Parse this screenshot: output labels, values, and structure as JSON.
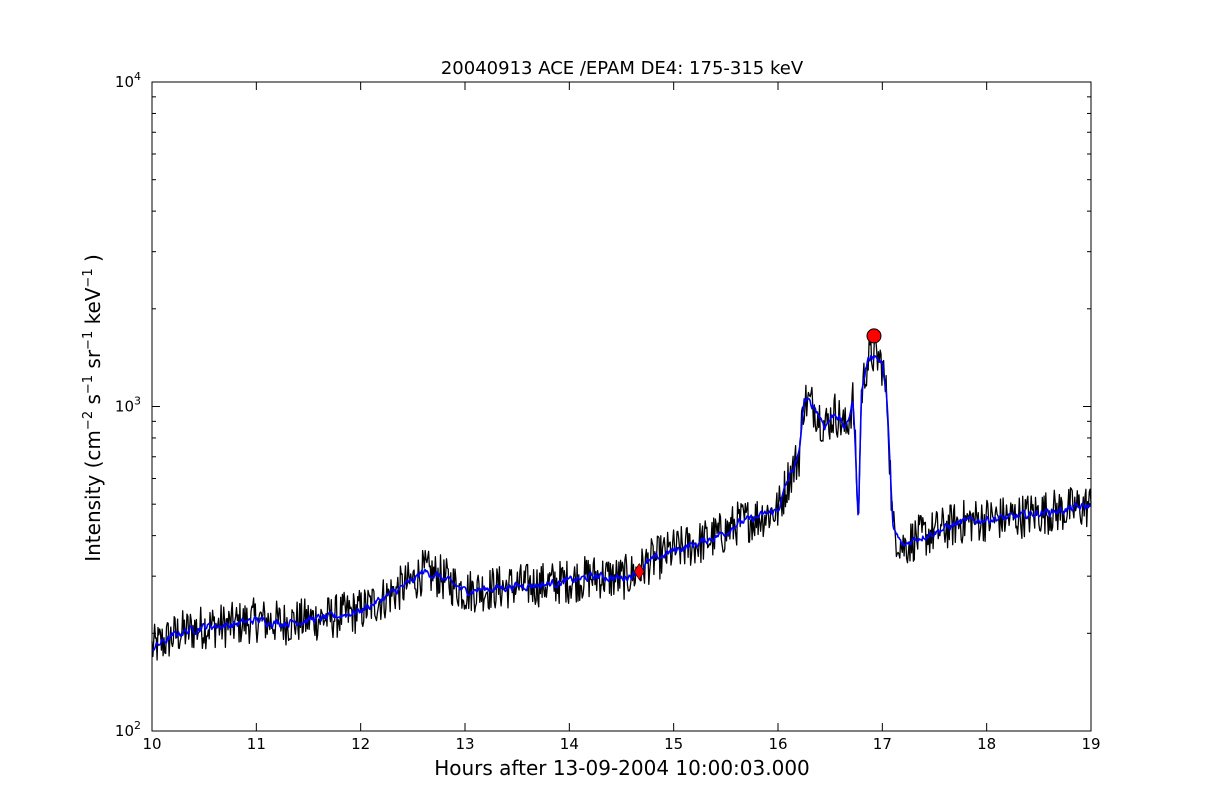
{
  "chart_data": {
    "type": "line",
    "title": "20040913 ACE /EPAM DE4: 175-315 keV",
    "xlabel": "Hours after 13-09-2004 10:00:03.000",
    "ylabel": {
      "prefix": "Intensity (cm",
      "exp1": "−2",
      "s": " s",
      "exp2": "−1",
      "sr": " sr",
      "exp3": "−1",
      "kev": " keV",
      "exp4": "−1",
      "suffix": " )"
    },
    "xlim": [
      10,
      19
    ],
    "ylim": [
      100,
      10000
    ],
    "yscale": "log",
    "x_ticks": [
      "10",
      "11",
      "12",
      "13",
      "14",
      "15",
      "16",
      "17",
      "18",
      "19"
    ],
    "y_ticks": [
      {
        "base": "10",
        "exp": "2"
      },
      {
        "base": "10",
        "exp": "3"
      },
      {
        "base": "10",
        "exp": "4"
      }
    ],
    "grid": false,
    "series": [
      {
        "style": "raw",
        "color": "#000000",
        "x": [
          10.0,
          10.25,
          10.5,
          10.75,
          11.0,
          11.25,
          11.5,
          11.75,
          12.0,
          12.25,
          12.5,
          12.6,
          12.75,
          13.0,
          13.25,
          13.5,
          13.75,
          14.0,
          14.25,
          14.5,
          14.67,
          14.75,
          15.0,
          15.25,
          15.5,
          15.6,
          15.75,
          16.0,
          16.1,
          16.2,
          16.25,
          16.35,
          16.45,
          16.55,
          16.65,
          16.72,
          16.77,
          16.8,
          16.85,
          16.9,
          16.95,
          17.0,
          17.05,
          17.1,
          17.2,
          17.3,
          17.5,
          17.75,
          18.0,
          18.25,
          18.5,
          18.75,
          19.0
        ],
        "y": [
          180,
          200,
          210,
          212,
          220,
          215,
          220,
          225,
          235,
          260,
          290,
          310,
          300,
          270,
          275,
          280,
          283,
          290,
          300,
          295,
          310,
          330,
          360,
          380,
          410,
          435,
          450,
          480,
          600,
          700,
          1050,
          1000,
          870,
          960,
          850,
          1050,
          450,
          1100,
          1350,
          1450,
          1420,
          1350,
          1000,
          420,
          370,
          390,
          410,
          440,
          450,
          455,
          470,
          480,
          495
        ]
      },
      {
        "style": "smoothed",
        "color": "#0000ff",
        "x": [
          10.0,
          10.25,
          10.5,
          10.75,
          11.0,
          11.25,
          11.5,
          11.75,
          12.0,
          12.25,
          12.5,
          12.6,
          12.75,
          13.0,
          13.25,
          13.5,
          13.75,
          14.0,
          14.25,
          14.5,
          14.67,
          14.75,
          15.0,
          15.25,
          15.5,
          15.6,
          15.75,
          16.0,
          16.1,
          16.2,
          16.25,
          16.35,
          16.45,
          16.55,
          16.65,
          16.72,
          16.77,
          16.8,
          16.85,
          16.9,
          16.95,
          17.0,
          17.05,
          17.1,
          17.2,
          17.3,
          17.5,
          17.75,
          18.0,
          18.25,
          18.5,
          18.75,
          19.0
        ],
        "y": [
          180,
          200,
          210,
          212,
          220,
          215,
          220,
          225,
          235,
          260,
          290,
          310,
          300,
          270,
          275,
          280,
          283,
          290,
          300,
          295,
          310,
          330,
          360,
          380,
          410,
          435,
          450,
          480,
          600,
          700,
          1050,
          1000,
          870,
          960,
          850,
          1050,
          450,
          1100,
          1350,
          1450,
          1420,
          1350,
          1000,
          420,
          370,
          390,
          410,
          440,
          450,
          455,
          470,
          480,
          495
        ]
      }
    ],
    "markers": [
      {
        "shape": "diamond",
        "x": 14.67,
        "y": 310,
        "color": "#ff0000"
      },
      {
        "shape": "circle",
        "x": 16.92,
        "y": 1650,
        "color": "#ff0000"
      }
    ]
  }
}
